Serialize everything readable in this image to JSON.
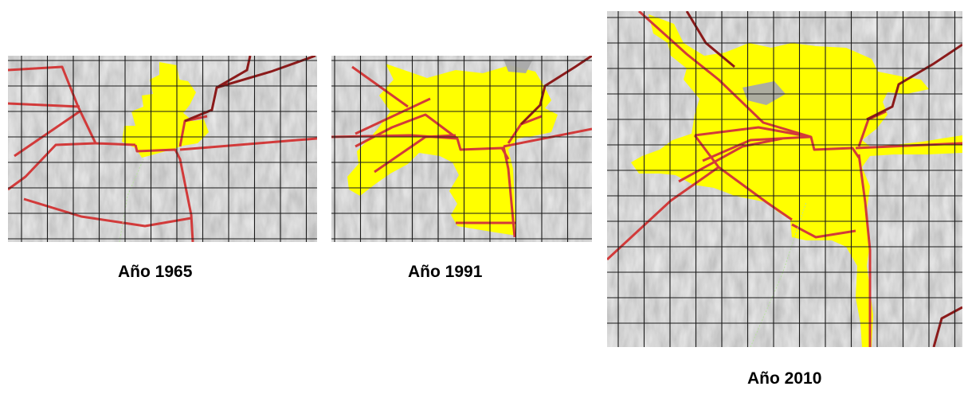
{
  "maps": [
    {
      "caption": "Año 1965"
    },
    {
      "caption": "Año 1991"
    },
    {
      "caption": "Año 2010"
    }
  ],
  "colors": {
    "urban_area": "#ffff00",
    "roads": "#d23a3a",
    "roads_dark": "#8b1a1a",
    "grid": "#1a1a1a",
    "terrain": "#a9a9a9"
  }
}
